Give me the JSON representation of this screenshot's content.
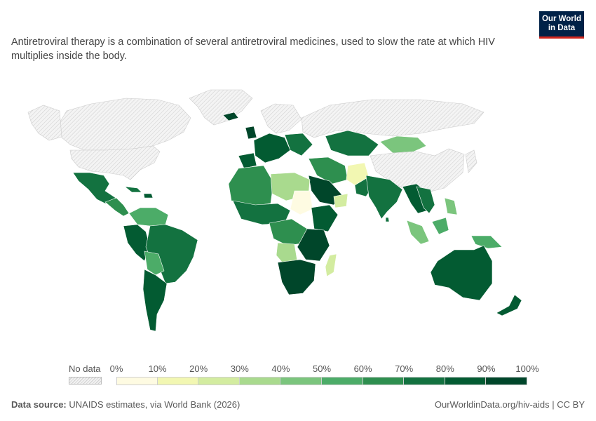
{
  "subtitle": "Antiretroviral therapy is a combination of several antiretroviral medicines, used to slow the rate at which HIV multiplies inside the body.",
  "logo": {
    "line1": "Our World",
    "line2": "in Data",
    "bg_color": "#002147",
    "accent_color": "#ce261e"
  },
  "legend": {
    "no_data_label": "No data",
    "ticks": [
      "0%",
      "10%",
      "20%",
      "30%",
      "40%",
      "50%",
      "60%",
      "70%",
      "80%",
      "90%",
      "100%"
    ],
    "bin_colors": [
      "#fefbe2",
      "#f2f7b2",
      "#d3eca0",
      "#a9da8e",
      "#7bc57d",
      "#4cac68",
      "#2e8f4f",
      "#137240",
      "#035b32",
      "#00462a"
    ],
    "no_data_color": "#e9e9e9"
  },
  "footer": {
    "source_label": "Data source:",
    "source_text": "UNAIDS estimates, via World Bank (2026)",
    "attribution": "OurWorldinData.org/hiv-aids | CC BY"
  }
}
